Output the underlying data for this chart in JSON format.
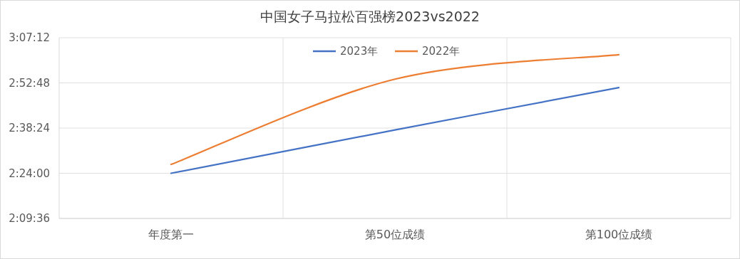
{
  "chart_data": {
    "type": "line",
    "title": "中国女子马拉松百强榜2023vs2022",
    "categories": [
      "年度第一",
      "第50位成绩",
      "第100位成绩"
    ],
    "series": [
      {
        "name": "2023年",
        "color": "#4472c4",
        "values": [
          2.4,
          2.63,
          2.855
        ]
      },
      {
        "name": "2022年",
        "color": "#ed7d31",
        "values": [
          2.447,
          2.9,
          3.03
        ]
      }
    ],
    "ylim": [
      2.16,
      3.12
    ],
    "yticks": [
      {
        "value": 2.16,
        "label": "2:09:36"
      },
      {
        "value": 2.4,
        "label": "2:24:00"
      },
      {
        "value": 2.64,
        "label": "2:38:24"
      },
      {
        "value": 2.88,
        "label": "2:52:48"
      },
      {
        "value": 3.12,
        "label": "3:07:12"
      }
    ],
    "grid": true,
    "legend": "top",
    "marker": "none",
    "line_style": "solid"
  }
}
